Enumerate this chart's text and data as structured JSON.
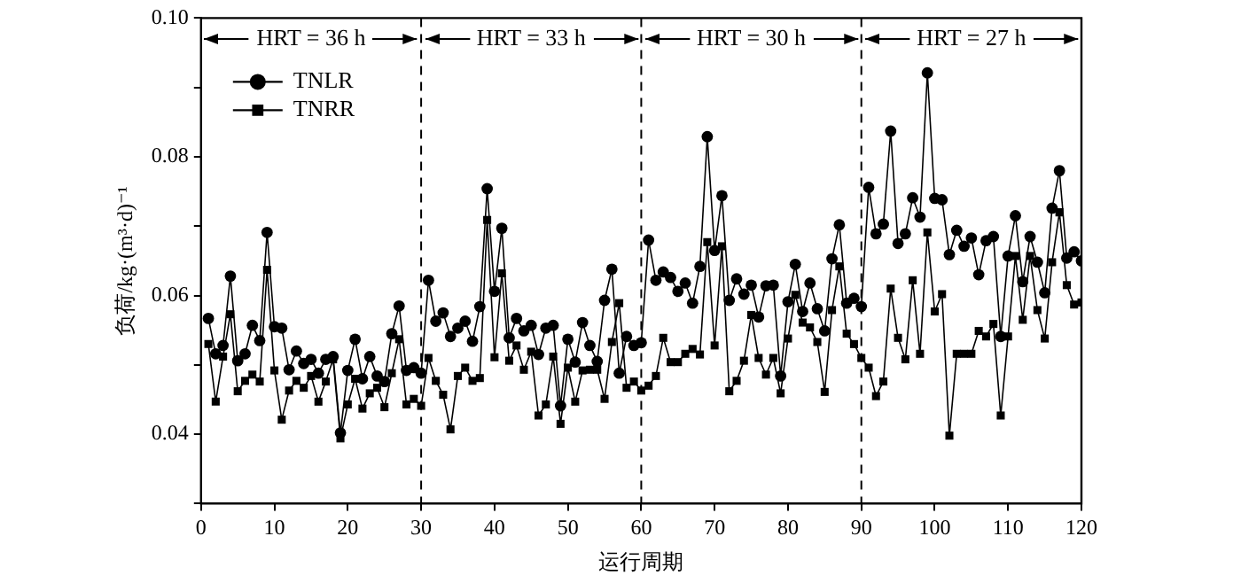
{
  "chart_data": {
    "type": "line",
    "xlabel": "运行周期",
    "ylabel": "负荷/kg·(m³·d)⁻¹",
    "x": [
      1,
      2,
      3,
      4,
      5,
      6,
      7,
      8,
      9,
      10,
      11,
      12,
      13,
      14,
      15,
      16,
      17,
      18,
      19,
      20,
      21,
      22,
      23,
      24,
      25,
      26,
      27,
      28,
      29,
      30,
      31,
      32,
      33,
      34,
      35,
      36,
      37,
      38,
      39,
      40,
      41,
      42,
      43,
      44,
      45,
      46,
      47,
      48,
      49,
      50,
      51,
      52,
      53,
      54,
      55,
      56,
      57,
      58,
      59,
      60,
      61,
      62,
      63,
      64,
      65,
      66,
      67,
      68,
      69,
      70,
      71,
      72,
      73,
      74,
      75,
      76,
      77,
      78,
      79,
      80,
      81,
      82,
      83,
      84,
      85,
      86,
      87,
      88,
      89,
      90,
      91,
      92,
      93,
      94,
      95,
      96,
      97,
      98,
      99,
      100,
      101,
      102,
      103,
      104,
      105,
      106,
      107,
      108,
      109,
      110,
      111,
      112,
      113,
      114,
      115,
      116,
      117,
      118,
      119,
      120
    ],
    "series": [
      {
        "name": "TNLR",
        "color": "#000000",
        "marker": "circle",
        "values": [
          0.0567,
          0.0516,
          0.0528,
          0.0628,
          0.0506,
          0.0516,
          0.0557,
          0.0535,
          0.0691,
          0.0555,
          0.0553,
          0.0493,
          0.052,
          0.0502,
          0.0508,
          0.0488,
          0.0508,
          0.0512,
          0.0402,
          0.0492,
          0.0537,
          0.048,
          0.0512,
          0.0484,
          0.0476,
          0.0545,
          0.0585,
          0.0492,
          0.0496,
          0.0488,
          0.0622,
          0.0563,
          0.0575,
          0.0541,
          0.0553,
          0.0563,
          0.0534,
          0.0584,
          0.0754,
          0.0606,
          0.0697,
          0.0539,
          0.0567,
          0.0549,
          0.0557,
          0.0515,
          0.0553,
          0.0557,
          0.0441,
          0.0537,
          0.0504,
          0.0561,
          0.0528,
          0.0505,
          0.0593,
          0.0638,
          0.0488,
          0.0541,
          0.0528,
          0.0532,
          0.068,
          0.0622,
          0.0634,
          0.0626,
          0.0606,
          0.0618,
          0.0589,
          0.0642,
          0.0829,
          0.0665,
          0.0744,
          0.0593,
          0.0624,
          0.0602,
          0.0615,
          0.0569,
          0.0614,
          0.0615,
          0.0484,
          0.0591,
          0.0645,
          0.0577,
          0.0618,
          0.0581,
          0.0549,
          0.0653,
          0.0702,
          0.0589,
          0.0596,
          0.0584,
          0.0756,
          0.0689,
          0.0703,
          0.0837,
          0.0675,
          0.0689,
          0.0741,
          0.0713,
          0.0921,
          0.074,
          0.0738,
          0.0659,
          0.0694,
          0.0671,
          0.0683,
          0.063,
          0.0679,
          0.0685,
          0.0541,
          0.0657,
          0.0715,
          0.062,
          0.0685,
          0.0648,
          0.0604,
          0.0726,
          0.078,
          0.0654,
          0.0663,
          0.065
        ]
      },
      {
        "name": "TNRR",
        "color": "#000000",
        "marker": "square",
        "values": [
          0.053,
          0.0447,
          0.0512,
          0.0573,
          0.0462,
          0.0477,
          0.0486,
          0.0476,
          0.0637,
          0.0492,
          0.0421,
          0.0463,
          0.0477,
          0.0467,
          0.0484,
          0.0447,
          0.0476,
          0.0508,
          0.0394,
          0.0443,
          0.048,
          0.0437,
          0.0459,
          0.0467,
          0.0439,
          0.0488,
          0.0537,
          0.0443,
          0.0451,
          0.0441,
          0.051,
          0.0477,
          0.0457,
          0.0407,
          0.0484,
          0.0496,
          0.0477,
          0.0481,
          0.0709,
          0.0511,
          0.0632,
          0.0506,
          0.0528,
          0.0493,
          0.0519,
          0.0427,
          0.0443,
          0.0512,
          0.0415,
          0.0496,
          0.0447,
          0.0492,
          0.0493,
          0.0493,
          0.0451,
          0.0533,
          0.0589,
          0.0467,
          0.0476,
          0.0463,
          0.047,
          0.0484,
          0.0539,
          0.0504,
          0.0504,
          0.0516,
          0.0523,
          0.0515,
          0.0677,
          0.0528,
          0.0671,
          0.0462,
          0.0477,
          0.0506,
          0.0572,
          0.051,
          0.0486,
          0.051,
          0.0459,
          0.0538,
          0.0601,
          0.0561,
          0.0554,
          0.0533,
          0.0461,
          0.0579,
          0.0642,
          0.0545,
          0.053,
          0.051,
          0.0496,
          0.0455,
          0.0476,
          0.061,
          0.0539,
          0.0508,
          0.0622,
          0.0516,
          0.0691,
          0.0577,
          0.0602,
          0.0398,
          0.0516,
          0.0516,
          0.0516,
          0.0549,
          0.0541,
          0.0559,
          0.0427,
          0.0541,
          0.0657,
          0.0565,
          0.0657,
          0.0579,
          0.0538,
          0.0648,
          0.072,
          0.0615,
          0.0587,
          0.059
        ]
      }
    ],
    "xlim": [
      0,
      120
    ],
    "xticks": [
      0,
      10,
      20,
      30,
      40,
      50,
      60,
      70,
      80,
      90,
      100,
      110,
      120
    ],
    "ylim": [
      0.03,
      0.1
    ],
    "yticks": [
      {
        "value": 0.03,
        "label": null
      },
      {
        "value": 0.04,
        "label": "0.04"
      },
      {
        "value": 0.05,
        "label": null
      },
      {
        "value": 0.06,
        "label": "0.06"
      },
      {
        "value": 0.07,
        "label": null
      },
      {
        "value": 0.08,
        "label": "0.08"
      },
      {
        "value": 0.09,
        "label": null
      },
      {
        "value": 0.1,
        "label": "0.10"
      }
    ],
    "ref_lines": [
      {
        "axis": "x",
        "value": 30,
        "color": "#000000",
        "line_style": "dashed"
      },
      {
        "axis": "x",
        "value": 60,
        "color": "#000000",
        "line_style": "dashed"
      },
      {
        "axis": "x",
        "value": 90,
        "color": "#000000",
        "line_style": "dashed"
      }
    ],
    "annotations": [
      {
        "text": "HRT = 36 h",
        "x": 30,
        "y": 0.097
      },
      {
        "text": "HRT = 33 h",
        "x": 60,
        "y": 0.097
      },
      {
        "text": "HRT = 30 h",
        "x": 90,
        "y": 0.097
      },
      "HRT = 27 h"
    ],
    "grid": false,
    "legend": "top left",
    "line_style": "solid"
  }
}
